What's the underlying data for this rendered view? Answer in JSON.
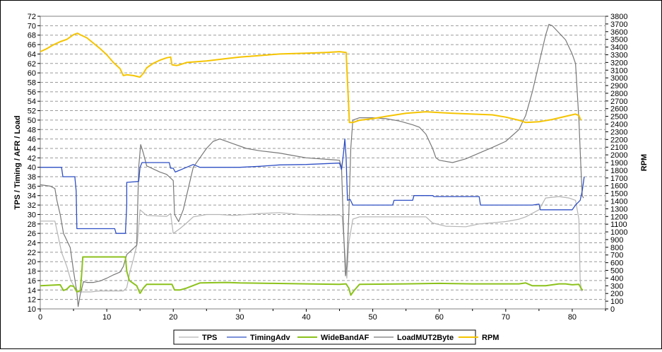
{
  "chart_data": {
    "type": "line",
    "xlabel": "",
    "ylabel_left": "TPS / Timing / AFR / Load",
    "ylabel_right": "RPM",
    "xlim": [
      0,
      85
    ],
    "ylim_left": [
      10,
      72
    ],
    "ylim_right": [
      0,
      3800
    ],
    "x_ticks": [
      0,
      10,
      20,
      30,
      40,
      50,
      60,
      70,
      80
    ],
    "y_left_ticks": [
      10,
      12,
      14,
      16,
      18,
      20,
      22,
      24,
      26,
      28,
      30,
      32,
      34,
      36,
      38,
      40,
      42,
      44,
      46,
      48,
      50,
      52,
      54,
      56,
      58,
      60,
      62,
      64,
      66,
      68,
      70,
      72
    ],
    "y_right_ticks": [
      0,
      100,
      200,
      300,
      400,
      500,
      600,
      700,
      800,
      900,
      1000,
      1100,
      1200,
      1300,
      1400,
      1500,
      1600,
      1700,
      1800,
      1900,
      2000,
      2100,
      2200,
      2300,
      2400,
      2500,
      2600,
      2700,
      2800,
      2900,
      3000,
      3100,
      3200,
      3300,
      3400,
      3500,
      3600,
      3700,
      3800
    ],
    "grid": "horizontal-dashed",
    "legend_position": "bottom",
    "series": [
      {
        "name": "TPS",
        "color": "#b4b4b4",
        "axis": "left",
        "points": [
          [
            0,
            28.6
          ],
          [
            2.2,
            28.6
          ],
          [
            2.6,
            26
          ],
          [
            3.2,
            22
          ],
          [
            4,
            19
          ],
          [
            4.6,
            16
          ],
          [
            5.2,
            14.5
          ],
          [
            5.6,
            13.6
          ],
          [
            6.6,
            13.6
          ],
          [
            7.6,
            13.6
          ],
          [
            9,
            13.8
          ],
          [
            12.5,
            13.8
          ],
          [
            13,
            14.5
          ],
          [
            13.5,
            18
          ],
          [
            14,
            20.5
          ],
          [
            14.6,
            24
          ],
          [
            15,
            31
          ],
          [
            16,
            29.8
          ],
          [
            19,
            29.6
          ],
          [
            19.6,
            30.2
          ],
          [
            20,
            26
          ],
          [
            21,
            27
          ],
          [
            22,
            28.2
          ],
          [
            23,
            29.5
          ],
          [
            25,
            30
          ],
          [
            27,
            30
          ],
          [
            29,
            29.8
          ],
          [
            31,
            30
          ],
          [
            33,
            30.2
          ],
          [
            36,
            30.4
          ],
          [
            39,
            30
          ],
          [
            42,
            29.9
          ],
          [
            45,
            29.9
          ],
          [
            45.4,
            29.6
          ],
          [
            45.8,
            22
          ],
          [
            46.1,
            16.5
          ],
          [
            46.4,
            24
          ],
          [
            47,
            29
          ],
          [
            48,
            29.5
          ],
          [
            52,
            29.5
          ],
          [
            58,
            29.5
          ],
          [
            59,
            28.2
          ],
          [
            61,
            27.5
          ],
          [
            64,
            27.4
          ],
          [
            66,
            28
          ],
          [
            70,
            28.5
          ],
          [
            72,
            29
          ],
          [
            73,
            29.5
          ],
          [
            75,
            31
          ],
          [
            76,
            33.5
          ],
          [
            78,
            33.8
          ],
          [
            79.5,
            33.5
          ],
          [
            80.5,
            33
          ],
          [
            81,
            29
          ],
          [
            81.2,
            16
          ],
          [
            81.4,
            13.8
          ],
          [
            81.6,
            14
          ]
        ]
      },
      {
        "name": "TimingAdv",
        "color": "#2e4fc4",
        "axis": "left",
        "points": [
          [
            0,
            40
          ],
          [
            3.2,
            40
          ],
          [
            3.4,
            38
          ],
          [
            5.2,
            38
          ],
          [
            5.4,
            35
          ],
          [
            5.5,
            27
          ],
          [
            11.2,
            27
          ],
          [
            11.4,
            26
          ],
          [
            12.8,
            26
          ],
          [
            13,
            32
          ],
          [
            13,
            36.8
          ],
          [
            14.8,
            37
          ],
          [
            15,
            40
          ],
          [
            15.3,
            41
          ],
          [
            19.4,
            41
          ],
          [
            19.6,
            39.8
          ],
          [
            20,
            39.8
          ],
          [
            20.3,
            39
          ],
          [
            22,
            40
          ],
          [
            23,
            40.6
          ],
          [
            24,
            40
          ],
          [
            30,
            40
          ],
          [
            33,
            40.2
          ],
          [
            36,
            40.5
          ],
          [
            40,
            40.6
          ],
          [
            45,
            40.9
          ],
          [
            45.3,
            39.5
          ],
          [
            45.6,
            43
          ],
          [
            45.8,
            46
          ],
          [
            46,
            42
          ],
          [
            46.2,
            33
          ],
          [
            46.6,
            33.2
          ],
          [
            47,
            32
          ],
          [
            53,
            32
          ],
          [
            53.2,
            33
          ],
          [
            56,
            33
          ],
          [
            56.2,
            34
          ],
          [
            59,
            34
          ],
          [
            59.2,
            33.8
          ],
          [
            66,
            33.8
          ],
          [
            66.2,
            32
          ],
          [
            70,
            32
          ],
          [
            71,
            32
          ],
          [
            72.5,
            32
          ],
          [
            74,
            32
          ],
          [
            75,
            32.2
          ],
          [
            75.2,
            31
          ],
          [
            80,
            31
          ],
          [
            80.5,
            32
          ],
          [
            81.2,
            33
          ],
          [
            81.5,
            35
          ],
          [
            81.8,
            38
          ]
        ]
      },
      {
        "name": "WideBandAF",
        "color": "#8cc21c",
        "axis": "left",
        "points": [
          [
            0,
            14.9
          ],
          [
            3,
            15.1
          ],
          [
            3.5,
            13.9
          ],
          [
            4,
            14.2
          ],
          [
            4.5,
            14.9
          ],
          [
            5,
            14.8
          ],
          [
            5.5,
            13.6
          ],
          [
            6,
            13.9
          ],
          [
            6.2,
            17
          ],
          [
            6.4,
            21
          ],
          [
            11,
            21
          ],
          [
            12.8,
            21
          ],
          [
            13,
            18
          ],
          [
            13.4,
            16
          ],
          [
            14.5,
            14.9
          ],
          [
            15,
            13.3
          ],
          [
            15.5,
            14.4
          ],
          [
            16,
            15.2
          ],
          [
            19.8,
            15.2
          ],
          [
            20.2,
            14
          ],
          [
            21,
            14
          ],
          [
            22,
            14.4
          ],
          [
            24,
            15.5
          ],
          [
            28,
            15.6
          ],
          [
            30,
            15.5
          ],
          [
            35,
            15.4
          ],
          [
            40,
            15.3
          ],
          [
            45,
            15.2
          ],
          [
            46,
            15.3
          ],
          [
            46.4,
            14.4
          ],
          [
            46.7,
            12.9
          ],
          [
            47.2,
            13.9
          ],
          [
            48,
            15.2
          ],
          [
            55,
            15.3
          ],
          [
            60,
            15.4
          ],
          [
            65,
            15.3
          ],
          [
            70,
            15.3
          ],
          [
            72,
            15.3
          ],
          [
            73,
            15.5
          ],
          [
            74,
            14.9
          ],
          [
            76,
            14.9
          ],
          [
            78,
            15.3
          ],
          [
            79,
            15.3
          ],
          [
            80,
            15.1
          ],
          [
            81,
            15.2
          ],
          [
            81.4,
            14.2
          ],
          [
            81.6,
            14
          ]
        ]
      },
      {
        "name": "LoadMUT2Byte",
        "color": "#787878",
        "axis": "left",
        "points": [
          [
            0,
            36.3
          ],
          [
            1.5,
            36
          ],
          [
            2.2,
            35.5
          ],
          [
            2.5,
            33
          ],
          [
            3,
            30
          ],
          [
            3.5,
            26
          ],
          [
            4.5,
            23
          ],
          [
            5,
            18
          ],
          [
            5.5,
            13.5
          ],
          [
            5.7,
            10.5
          ],
          [
            6,
            13
          ],
          [
            6.5,
            15.8
          ],
          [
            7,
            15.6
          ],
          [
            8,
            15.6
          ],
          [
            9,
            15.9
          ],
          [
            10,
            16.5
          ],
          [
            11,
            17.2
          ],
          [
            12,
            17.8
          ],
          [
            12.5,
            19
          ],
          [
            13,
            21.5
          ],
          [
            14,
            22.8
          ],
          [
            14.5,
            23.5
          ],
          [
            14.8,
            40
          ],
          [
            15.1,
            44.8
          ],
          [
            15.5,
            43
          ],
          [
            16,
            40.3
          ],
          [
            18,
            39
          ],
          [
            19,
            38.5
          ],
          [
            20,
            37.2
          ],
          [
            20.2,
            30
          ],
          [
            20.8,
            28.5
          ],
          [
            21.5,
            31
          ],
          [
            22,
            34
          ],
          [
            23,
            40
          ],
          [
            24,
            42
          ],
          [
            25,
            44
          ],
          [
            26,
            45.5
          ],
          [
            27,
            46
          ],
          [
            29,
            45
          ],
          [
            31,
            44
          ],
          [
            33,
            43.5
          ],
          [
            36,
            43
          ],
          [
            38,
            42.5
          ],
          [
            40,
            42
          ],
          [
            42,
            41.8
          ],
          [
            44,
            41.6
          ],
          [
            45,
            41.5
          ],
          [
            45.3,
            40
          ],
          [
            45.6,
            27
          ],
          [
            45.9,
            17
          ],
          [
            46.1,
            19
          ],
          [
            46.4,
            30
          ],
          [
            46.7,
            44
          ],
          [
            47,
            50
          ],
          [
            48,
            50.5
          ],
          [
            50,
            50.5
          ],
          [
            52,
            50.3
          ],
          [
            54,
            49.8
          ],
          [
            56,
            49
          ],
          [
            57,
            48.5
          ],
          [
            58,
            47
          ],
          [
            59,
            44
          ],
          [
            59.5,
            42
          ],
          [
            60,
            41.5
          ],
          [
            62,
            41
          ],
          [
            64,
            41.8
          ],
          [
            66,
            43
          ],
          [
            68,
            44.2
          ],
          [
            70,
            45.5
          ],
          [
            72,
            48
          ],
          [
            73,
            51
          ],
          [
            74,
            56
          ],
          [
            75,
            62
          ],
          [
            76,
            68
          ],
          [
            76.5,
            70.3
          ],
          [
            77,
            70
          ],
          [
            78,
            68.5
          ],
          [
            79,
            67
          ],
          [
            80,
            64
          ],
          [
            80.5,
            62
          ],
          [
            81,
            50
          ],
          [
            81.3,
            40
          ],
          [
            81.5,
            34
          ],
          [
            81.7,
            33.5
          ]
        ]
      },
      {
        "name": "RPM",
        "color": "#f5c400",
        "axis": "right",
        "points": [
          [
            0,
            3340
          ],
          [
            1,
            3380
          ],
          [
            2,
            3430
          ],
          [
            3,
            3470
          ],
          [
            4,
            3500
          ],
          [
            5,
            3560
          ],
          [
            5.6,
            3580
          ],
          [
            6,
            3560
          ],
          [
            7,
            3520
          ],
          [
            8,
            3450
          ],
          [
            9,
            3380
          ],
          [
            10,
            3300
          ],
          [
            11,
            3200
          ],
          [
            12,
            3120
          ],
          [
            12.5,
            3030
          ],
          [
            13,
            3040
          ],
          [
            14,
            3030
          ],
          [
            15,
            3010
          ],
          [
            15.5,
            3060
          ],
          [
            16,
            3130
          ],
          [
            17,
            3190
          ],
          [
            18,
            3230
          ],
          [
            19,
            3260
          ],
          [
            19.6,
            3270
          ],
          [
            19.8,
            3170
          ],
          [
            20.5,
            3160
          ],
          [
            21,
            3170
          ],
          [
            22,
            3200
          ],
          [
            25,
            3220
          ],
          [
            28,
            3250
          ],
          [
            30,
            3270
          ],
          [
            33,
            3290
          ],
          [
            36,
            3310
          ],
          [
            40,
            3320
          ],
          [
            43,
            3330
          ],
          [
            45,
            3340
          ],
          [
            46,
            3330
          ],
          [
            46.5,
            2420
          ],
          [
            47,
            2420
          ],
          [
            48,
            2450
          ],
          [
            50,
            2470
          ],
          [
            52,
            2500
          ],
          [
            55,
            2540
          ],
          [
            58,
            2560
          ],
          [
            60,
            2550
          ],
          [
            62,
            2540
          ],
          [
            65,
            2530
          ],
          [
            68,
            2520
          ],
          [
            70,
            2490
          ],
          [
            72,
            2450
          ],
          [
            73,
            2420
          ],
          [
            75,
            2430
          ],
          [
            77,
            2460
          ],
          [
            79,
            2500
          ],
          [
            80.5,
            2530
          ],
          [
            81,
            2510
          ],
          [
            81.3,
            2450
          ]
        ]
      }
    ]
  }
}
